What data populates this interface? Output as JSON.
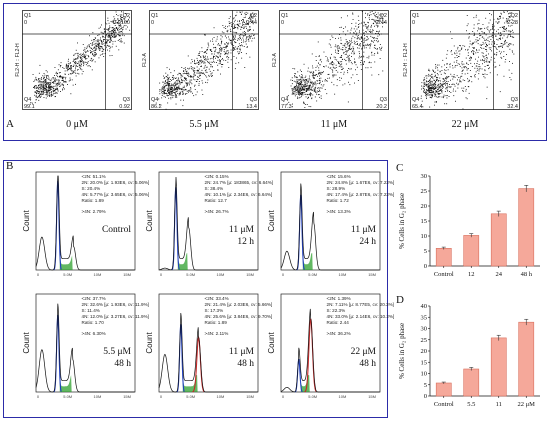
{
  "panel_letters": {
    "a": "A",
    "b": "B",
    "c": "C",
    "d": "D"
  },
  "flow_plots": [
    {
      "q1": "Q1",
      "q1_val": "0",
      "q2": "Q2",
      "q2_val": "0.0100",
      "q3": "Q3",
      "q3_val": "0.92",
      "q4": "Q4",
      "q4_val": "99.1",
      "ylabel": "FL2-H :: FL2-H",
      "label": "0 μM"
    },
    {
      "q1": "Q1",
      "q1_val": "0",
      "q2": "Q2",
      "q2_val": "0.44",
      "q3": "Q3",
      "q3_val": "13.4",
      "q4": "Q4",
      "q4_val": "86.2",
      "ylabel": "FL2-A",
      "label": "5.5 μM"
    },
    {
      "q1": "Q1",
      "q1_val": "0",
      "q2": "Q2",
      "q2_val": "2.44",
      "q3": "Q3",
      "q3_val": "20.2",
      "q4": "Q4",
      "q4_val": "77.3",
      "ylabel": "FL2-A",
      "label": "11 μM"
    },
    {
      "q1": "Q1",
      "q1_val": "0",
      "q2": "Q2",
      "q2_val": "2.28",
      "q3": "Q3",
      "q3_val": "32.4",
      "q4": "Q4",
      "q4_val": "65.4",
      "ylabel": "FL2-H :: FL2-H",
      "label": "22 μM"
    }
  ],
  "histograms": [
    {
      "stats": [
        "<2N: 51.1%",
        "2N: 20.0% [μ: 1.93E6, cv: 5.06%]",
        "S: 20.4%",
        "4N: 5.77% [μ: 3.65E6, cv: 5.06%]",
        "Ratio: 1.89",
        ">4N: 2.79%"
      ],
      "label1": "Control",
      "label2": "",
      "ylabel": "Count",
      "ticks": [
        "0",
        "5.0M",
        "10M",
        "15M"
      ]
    },
    {
      "stats": [
        "<2N: 0.15%",
        "2N: 24.7% [μ: 183865, cv: 6.64%]",
        "S: 38.4%",
        "4N: 10.1% [μ: 2.34E6, cv: 6.64%]",
        "Ratio: 12.7",
        ">4N: 26.7%"
      ],
      "label1": "11 μM",
      "label2": "12 h",
      "ylabel": "Count",
      "ticks": [
        "0",
        "5.0M",
        "10M",
        "15M"
      ]
    },
    {
      "stats": [
        "<2N: 15.6%",
        "2N: 24.8% [μ: 1.67E6, cv: 7.22%]",
        "S: 28.9%",
        "4N: 17.4% [μ: 2.87E6, cv: 7.22%]",
        "Ratio: 1.72",
        ">4N: 13.3%"
      ],
      "label1": "11 μM",
      "label2": "24 h",
      "ylabel": "Count",
      "ticks": [
        "0",
        "5.0M",
        "10M",
        "15M"
      ]
    },
    {
      "stats": [
        "<2N: 37.7%",
        "2N: 32.6% [μ: 1.93E6, cv: 11.9%]",
        "S: 11.4%",
        "4N: 12.0% [μ: 3.27E6, cv: 11.9%]",
        "Ratio: 1.70",
        ">4N: 6.30%"
      ],
      "label1": "5.5 μM",
      "label2": "48 h",
      "ylabel": "Count",
      "ticks": [
        "0",
        "5.0M",
        "10M",
        "15M"
      ]
    },
    {
      "stats": [
        "<2N: 33.4%",
        "2N: 21.4% [μ: 2.03E6, cv: 5.66%]",
        "S: 17.3%",
        "4N: 25.6% [μ: 3.84E6, cv: 9.70%]",
        "Ratio: 1.89",
        ">4N: 2.11%"
      ],
      "label1": "11 μM",
      "label2": "48 h",
      "ylabel": "Count",
      "ticks": [
        "0",
        "5.0M",
        "10M",
        "15M"
      ]
    },
    {
      "stats": [
        "<2N: 1.39%",
        "2N: 7.11% [μ: 8.77E5, cv: 20.3%]",
        "S: 22.3%",
        "4N: 33.0% [μ: 2.14E6, cv: 10.2%]",
        "Ratio: 2.44",
        ">4N: 36.2%"
      ],
      "label1": "22 μM",
      "label2": "48 h",
      "ylabel": "Count",
      "ticks": [
        "0",
        "5.0M",
        "10M",
        "15M"
      ]
    }
  ],
  "colors": {
    "frame": "#2c2ca8",
    "bar_fill": "#f5a89a",
    "bar_edge": "#d9705f",
    "g1_peak": "#1f3fbf",
    "s_phase": "#2ea02e",
    "g2_peak": "#c62828"
  },
  "chart_data": [
    {
      "type": "bar",
      "panel": "C",
      "categories": [
        "Control",
        "12",
        "24",
        "48 h"
      ],
      "values": [
        5.9,
        10.2,
        17.4,
        25.8
      ],
      "errors": [
        0.4,
        0.6,
        0.9,
        1.1
      ],
      "ylabel": "% Cells in G₂ phase",
      "yticks": [
        "0",
        "5",
        "10",
        "15",
        "20",
        "25",
        "30"
      ],
      "ylim": [
        0,
        30
      ]
    },
    {
      "type": "bar",
      "panel": "D",
      "categories": [
        "Control",
        "5.5",
        "11",
        "22 μM"
      ],
      "values": [
        5.8,
        12.0,
        25.8,
        32.8
      ],
      "errors": [
        0.4,
        0.7,
        1.2,
        1.3
      ],
      "ylabel": "% Cells in G₂ phase",
      "yticks": [
        "0",
        "5",
        "10",
        "15",
        "20",
        "25",
        "30",
        "35",
        "40"
      ],
      "ylim": [
        0,
        40
      ]
    }
  ]
}
